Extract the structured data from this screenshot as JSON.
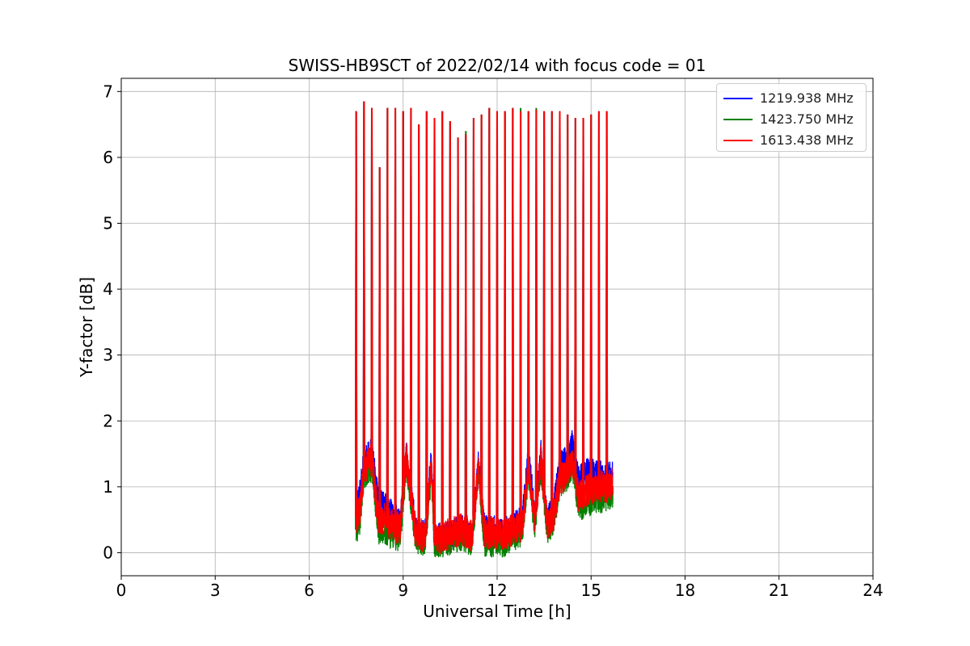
{
  "chart_data": {
    "type": "line",
    "title": "SWISS-HB9SCT of 2022/02/14 with focus code = 01",
    "xlabel": "Universal Time [h]",
    "ylabel": "Y-factor [dB]",
    "xlim": [
      0,
      24
    ],
    "ylim": [
      -0.35,
      7.2
    ],
    "xticks": [
      0,
      3,
      6,
      9,
      12,
      15,
      18,
      21,
      24
    ],
    "yticks": [
      0,
      1,
      2,
      3,
      4,
      5,
      6,
      7
    ],
    "grid": true,
    "legend_position": "top-right",
    "observation_window_h": [
      7.5,
      15.7
    ],
    "spike_times_h": [
      7.5,
      7.75,
      8.0,
      8.25,
      8.5,
      8.75,
      9.0,
      9.25,
      9.5,
      9.75,
      10.0,
      10.25,
      10.5,
      10.75,
      11.0,
      11.25,
      11.5,
      11.75,
      12.0,
      12.25,
      12.5,
      12.75,
      13.0,
      13.25,
      13.5,
      13.75,
      14.0,
      14.25,
      14.5,
      14.75,
      15.0,
      15.25,
      15.5
    ],
    "series": [
      {
        "name": "1219.938 MHz",
        "color": "#0000ff",
        "spike_peaks": [
          6.7,
          6.85,
          6.75,
          5.85,
          6.75,
          6.75,
          6.7,
          6.75,
          6.5,
          6.7,
          6.6,
          6.7,
          6.55,
          6.3,
          6.35,
          6.6,
          6.65,
          6.75,
          6.7,
          6.7,
          6.75,
          6.7,
          6.7,
          6.72,
          6.7,
          6.7,
          6.7,
          6.65,
          6.6,
          6.6,
          6.65,
          6.7,
          6.7
        ],
        "baseline_x": [
          7.5,
          7.6,
          7.75,
          8.0,
          8.2,
          8.4,
          8.7,
          8.9,
          9.1,
          9.4,
          9.7,
          9.9,
          10.0,
          10.3,
          10.6,
          10.9,
          11.2,
          11.4,
          11.6,
          11.9,
          12.2,
          12.5,
          12.8,
          13.0,
          13.2,
          13.4,
          13.6,
          13.8,
          14.0,
          14.2,
          14.4,
          14.6,
          14.9,
          15.2,
          15.5,
          15.7
        ],
        "baseline_y": [
          0.75,
          0.85,
          1.4,
          1.55,
          0.8,
          0.7,
          0.55,
          0.5,
          1.5,
          0.35,
          0.3,
          1.45,
          0.2,
          0.25,
          0.3,
          0.4,
          0.3,
          1.35,
          0.35,
          0.35,
          0.3,
          0.4,
          0.5,
          1.45,
          0.6,
          1.5,
          0.5,
          0.65,
          1.35,
          1.4,
          1.65,
          1.1,
          1.25,
          1.2,
          1.15,
          1.2
        ],
        "band_halfwidth": 0.14
      },
      {
        "name": "1423.750 MHz",
        "color": "#008000",
        "spike_peaks": [
          6.7,
          6.85,
          6.75,
          5.85,
          6.75,
          6.75,
          6.7,
          6.75,
          6.5,
          6.7,
          6.6,
          6.7,
          6.55,
          6.3,
          6.4,
          6.6,
          6.65,
          6.75,
          6.7,
          6.7,
          6.75,
          6.75,
          6.7,
          6.75,
          6.7,
          6.7,
          6.7,
          6.65,
          6.6,
          6.6,
          6.65,
          6.7,
          6.7
        ],
        "baseline_x": [
          7.5,
          7.6,
          7.75,
          8.0,
          8.2,
          8.4,
          8.7,
          8.9,
          9.1,
          9.4,
          9.7,
          9.9,
          10.0,
          10.3,
          10.6,
          10.9,
          11.2,
          11.4,
          11.6,
          11.9,
          12.2,
          12.5,
          12.8,
          13.0,
          13.2,
          13.4,
          13.6,
          13.8,
          14.0,
          14.2,
          14.4,
          14.6,
          14.9,
          15.2,
          15.5,
          15.7
        ],
        "baseline_y": [
          0.35,
          0.4,
          1.15,
          1.3,
          0.35,
          0.3,
          0.25,
          0.2,
          1.35,
          0.2,
          0.15,
          1.25,
          0.15,
          0.15,
          0.2,
          0.25,
          0.15,
          1.25,
          0.15,
          0.15,
          0.15,
          0.25,
          0.3,
          1.2,
          0.4,
          1.3,
          0.35,
          0.45,
          1.05,
          1.1,
          1.35,
          0.7,
          0.75,
          0.8,
          0.85,
          0.9
        ],
        "band_halfwidth": 0.14
      },
      {
        "name": "1613.438 MHz",
        "color": "#ff0000",
        "spike_peaks": [
          6.7,
          6.85,
          6.75,
          5.85,
          6.75,
          6.75,
          6.7,
          6.75,
          6.5,
          6.7,
          6.6,
          6.7,
          6.55,
          6.3,
          6.35,
          6.6,
          6.65,
          6.75,
          6.7,
          6.7,
          6.75,
          6.7,
          6.7,
          6.72,
          6.7,
          6.7,
          6.7,
          6.65,
          6.6,
          6.6,
          6.65,
          6.7,
          6.7
        ],
        "baseline_x": [
          7.5,
          7.6,
          7.75,
          8.0,
          8.2,
          8.4,
          8.7,
          8.9,
          9.1,
          9.4,
          9.7,
          9.9,
          10.0,
          10.3,
          10.6,
          10.9,
          11.2,
          11.4,
          11.6,
          11.9,
          12.2,
          12.5,
          12.8,
          13.0,
          13.2,
          13.4,
          13.6,
          13.8,
          14.0,
          14.2,
          14.4,
          14.6,
          14.9,
          15.2,
          15.5,
          15.7
        ],
        "baseline_y": [
          0.55,
          0.6,
          1.25,
          1.45,
          0.55,
          0.5,
          0.4,
          0.35,
          1.45,
          0.3,
          0.25,
          1.35,
          0.2,
          0.25,
          0.3,
          0.35,
          0.25,
          1.3,
          0.3,
          0.3,
          0.25,
          0.35,
          0.4,
          1.3,
          0.5,
          1.4,
          0.45,
          0.55,
          1.1,
          1.2,
          1.4,
          0.85,
          0.95,
          1.0,
          1.0,
          1.05
        ],
        "band_halfwidth": 0.16
      }
    ]
  }
}
